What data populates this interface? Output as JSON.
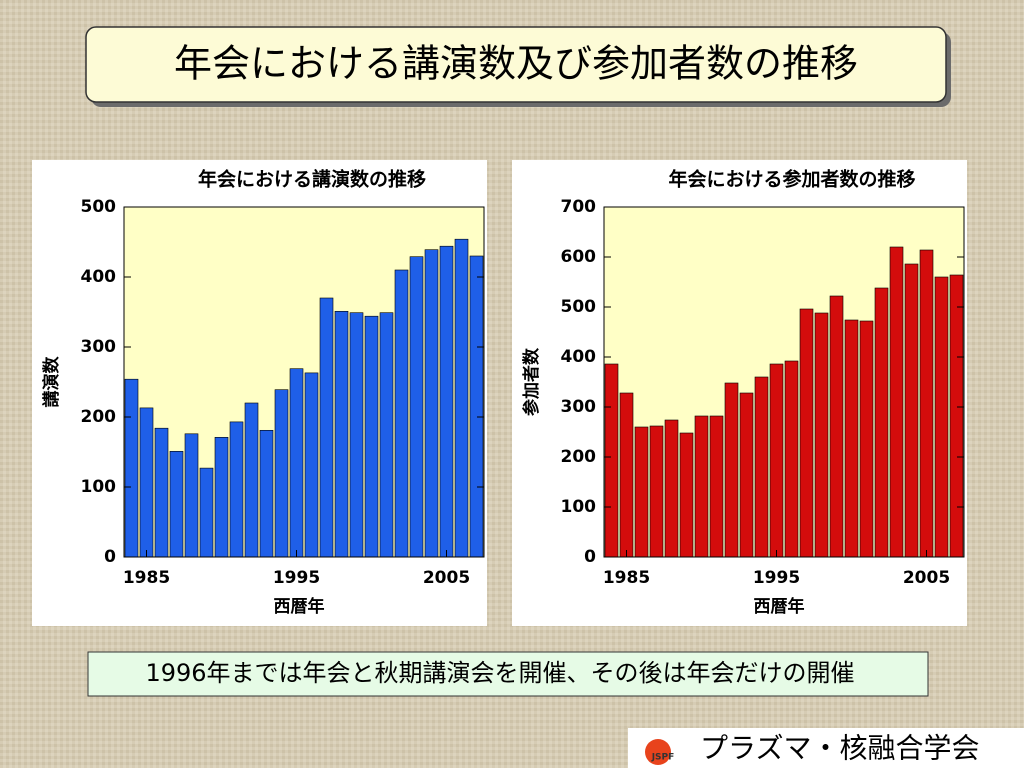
{
  "title": "年会における講演数及び参加者数の推移",
  "note": "1996年までは年会と秋期講演会を開催、その後は年会だけの開催",
  "logo": "JSPF",
  "footer": "プラズマ・核融合学会",
  "chart_data": [
    {
      "type": "bar",
      "title": "年会における講演数の推移",
      "xlabel": "西暦年",
      "ylabel": "講演数",
      "x": [
        1984,
        1985,
        1986,
        1987,
        1988,
        1989,
        1990,
        1991,
        1992,
        1993,
        1994,
        1995,
        1996,
        1997,
        1998,
        1999,
        2000,
        2001,
        2002,
        2003,
        2004,
        2005,
        2006,
        2007
      ],
      "values": [
        254,
        213,
        184,
        151,
        176,
        127,
        171,
        193,
        220,
        181,
        239,
        269,
        263,
        370,
        351,
        349,
        344,
        349,
        410,
        429,
        439,
        444,
        454,
        430
      ],
      "color": "#1f5fe8",
      "xlim": [
        1983.5,
        2007.5
      ],
      "xticks": [
        1985,
        1995,
        2005
      ],
      "ylim": [
        0,
        500
      ],
      "yticks": [
        0,
        100,
        200,
        300,
        400,
        500
      ]
    },
    {
      "type": "bar",
      "title": "年会における参加者数の推移",
      "xlabel": "西暦年",
      "ylabel": "参加者数",
      "x": [
        1984,
        1985,
        1986,
        1987,
        1988,
        1989,
        1990,
        1991,
        1992,
        1993,
        1994,
        1995,
        1996,
        1997,
        1998,
        1999,
        2000,
        2001,
        2002,
        2003,
        2004,
        2005,
        2006,
        2007
      ],
      "values": [
        386,
        328,
        260,
        262,
        274,
        248,
        282,
        282,
        348,
        328,
        360,
        386,
        392,
        496,
        488,
        522,
        474,
        472,
        538,
        620,
        586,
        614,
        560,
        564
      ],
      "color": "#d40c0c",
      "xlim": [
        1983.5,
        2007.5
      ],
      "xticks": [
        1985,
        1995,
        2005
      ],
      "ylim": [
        0,
        700
      ],
      "yticks": [
        0,
        100,
        200,
        300,
        400,
        500,
        600,
        700
      ]
    }
  ]
}
